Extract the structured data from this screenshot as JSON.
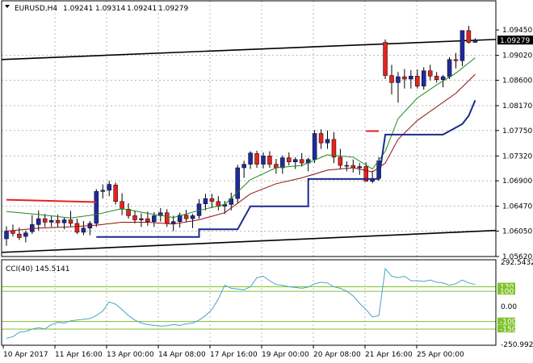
{
  "header": {
    "symbol_tf": "EURUSD,H4",
    "open": "1.09241",
    "high": "1.09314",
    "low": "1.09241",
    "close": "1.09279"
  },
  "colors": {
    "bull_body": "#1f2aa0",
    "bear_body": "#e8221c",
    "ma_fast": "#1f8a1f",
    "ma_slow": "#8b1010",
    "trailing": "#1a2a8a",
    "trend": "#000000",
    "cci": "#4aa3c8",
    "cci_level": "#7fc32b"
  },
  "chart_data": [
    {
      "type": "candlestick",
      "ylim": [
        1.0562,
        1.0967
      ],
      "x_tick_labels": [
        "10 Apr 2017",
        "11 Apr 16:00",
        "13 Apr 00:00",
        "14 Apr 08:00",
        "17 Apr 16:00",
        "19 Apr 00:00",
        "20 Apr 08:00",
        "21 Apr 16:00",
        "25 Apr 00:00"
      ],
      "y_tick_labels": [
        "1.09450",
        "1.09020",
        "1.08600",
        "1.08170",
        "1.07750",
        "1.07320",
        "1.06900",
        "1.06470",
        "1.06050",
        "1.05620"
      ],
      "current_price_label": "1.09279",
      "candles": [
        [
          1.0592,
          1.0613,
          1.058,
          1.0605
        ],
        [
          1.0606,
          1.0616,
          1.0596,
          1.0601
        ],
        [
          1.06,
          1.0611,
          1.059,
          1.0594
        ],
        [
          1.0596,
          1.0606,
          1.0586,
          1.0602
        ],
        [
          1.0604,
          1.0632,
          1.06,
          1.0616
        ],
        [
          1.0616,
          1.064,
          1.0606,
          1.0626
        ],
        [
          1.0626,
          1.0634,
          1.0612,
          1.062
        ],
        [
          1.062,
          1.0631,
          1.0612,
          1.0623
        ],
        [
          1.0623,
          1.0633,
          1.0612,
          1.0619
        ],
        [
          1.0619,
          1.0628,
          1.0608,
          1.0624
        ],
        [
          1.0624,
          1.0639,
          1.0612,
          1.0618
        ],
        [
          1.0618,
          1.0626,
          1.06,
          1.0603
        ],
        [
          1.0603,
          1.0622,
          1.0598,
          1.061
        ],
        [
          1.061,
          1.0622,
          1.0598,
          1.0618
        ],
        [
          1.0618,
          1.0676,
          1.0612,
          1.0672
        ],
        [
          1.0672,
          1.0684,
          1.066,
          1.0674
        ],
        [
          1.0674,
          1.069,
          1.0664,
          1.0684
        ],
        [
          1.0683,
          1.0687,
          1.065,
          1.0655
        ],
        [
          1.0655,
          1.0669,
          1.0632,
          1.0642
        ],
        [
          1.0642,
          1.0652,
          1.0626,
          1.0631
        ],
        [
          1.0631,
          1.064,
          1.0618,
          1.0624
        ],
        [
          1.0624,
          1.0635,
          1.0612,
          1.0626
        ],
        [
          1.0626,
          1.0638,
          1.0614,
          1.0621
        ],
        [
          1.0621,
          1.0637,
          1.0612,
          1.0631
        ],
        [
          1.0631,
          1.0644,
          1.0621,
          1.0636
        ],
        [
          1.0636,
          1.0642,
          1.0612,
          1.0618
        ],
        [
          1.0618,
          1.0631,
          1.0605,
          1.0621
        ],
        [
          1.0621,
          1.0636,
          1.0611,
          1.0632
        ],
        [
          1.0632,
          1.0641,
          1.062,
          1.0626
        ],
        [
          1.0626,
          1.0634,
          1.061,
          1.0631
        ],
        [
          1.0631,
          1.0659,
          1.0626,
          1.0651
        ],
        [
          1.0651,
          1.0668,
          1.064,
          1.066
        ],
        [
          1.066,
          1.0668,
          1.0644,
          1.0655
        ],
        [
          1.0655,
          1.0664,
          1.064,
          1.0647
        ],
        [
          1.0647,
          1.0656,
          1.0634,
          1.065
        ],
        [
          1.065,
          1.067,
          1.064,
          1.066
        ],
        [
          1.066,
          1.0717,
          1.0652,
          1.0712
        ],
        [
          1.0712,
          1.0724,
          1.0695,
          1.0718
        ],
        [
          1.0718,
          1.074,
          1.071,
          1.0737
        ],
        [
          1.0736,
          1.0741,
          1.0712,
          1.0718
        ],
        [
          1.0718,
          1.0738,
          1.0711,
          1.0732
        ],
        [
          1.0732,
          1.074,
          1.0712,
          1.0718
        ],
        [
          1.0718,
          1.0727,
          1.0702,
          1.0712
        ],
        [
          1.0712,
          1.0733,
          1.0702,
          1.0729
        ],
        [
          1.0729,
          1.0738,
          1.0716,
          1.0722
        ],
        [
          1.0722,
          1.073,
          1.071,
          1.0726
        ],
        [
          1.0726,
          1.0737,
          1.0714,
          1.072
        ],
        [
          1.072,
          1.0729,
          1.0706,
          1.0726
        ],
        [
          1.0726,
          1.0776,
          1.072,
          1.077
        ],
        [
          1.077,
          1.0777,
          1.0744,
          1.0754
        ],
        [
          1.0754,
          1.0775,
          1.0744,
          1.076
        ],
        [
          1.076,
          1.0772,
          1.072,
          1.073
        ],
        [
          1.073,
          1.0744,
          1.071,
          1.0716
        ],
        [
          1.0716,
          1.0723,
          1.0706,
          1.0716
        ],
        [
          1.0716,
          1.0726,
          1.0704,
          1.0712
        ],
        [
          1.0712,
          1.072,
          1.07,
          1.0714
        ],
        [
          1.0714,
          1.0721,
          1.0689,
          1.0689
        ],
        [
          1.0689,
          1.0707,
          1.0686,
          1.0694
        ],
        [
          1.0694,
          1.073,
          1.069,
          1.0724
        ],
        [
          1.0924,
          1.0929,
          1.0862,
          1.0868
        ],
        [
          1.0868,
          1.0886,
          1.0836,
          1.0856
        ],
        [
          1.0856,
          1.0874,
          1.0822,
          1.0866
        ],
        [
          1.0866,
          1.0879,
          1.0846,
          1.0862
        ],
        [
          1.0862,
          1.0877,
          1.0846,
          1.0867
        ],
        [
          1.0867,
          1.0878,
          1.0846,
          1.085
        ],
        [
          1.085,
          1.0882,
          1.0844,
          1.0876
        ],
        [
          1.0876,
          1.0886,
          1.086,
          1.0867
        ],
        [
          1.0867,
          1.0874,
          1.0856,
          1.0861
        ],
        [
          1.0861,
          1.0869,
          1.0848,
          1.0866
        ],
        [
          1.0866,
          1.0899,
          1.0862,
          1.0895
        ],
        [
          1.0895,
          1.0906,
          1.088,
          1.0893
        ],
        [
          1.0893,
          1.0944,
          1.0884,
          1.0944
        ],
        [
          1.0944,
          1.0952,
          1.0922,
          1.0924
        ],
        [
          1.0924,
          1.0931,
          1.0924,
          1.0928
        ]
      ],
      "ma_fast": [
        [
          0,
          1.0638
        ],
        [
          5,
          1.0633
        ],
        [
          10,
          1.0627
        ],
        [
          14,
          1.0633
        ],
        [
          18,
          1.0643
        ],
        [
          22,
          1.0635
        ],
        [
          26,
          1.0628
        ],
        [
          30,
          1.064
        ],
        [
          34,
          1.065
        ],
        [
          38,
          1.0692
        ],
        [
          42,
          1.0712
        ],
        [
          46,
          1.0716
        ],
        [
          50,
          1.0734
        ],
        [
          54,
          1.073
        ],
        [
          57,
          1.071
        ],
        [
          59,
          1.074
        ],
        [
          61,
          1.0795
        ],
        [
          64,
          1.083
        ],
        [
          67,
          1.0852
        ],
        [
          70,
          1.0872
        ],
        [
          73,
          1.0898
        ]
      ],
      "ma_slow": [
        [
          0,
          1.0605
        ],
        [
          5,
          1.061
        ],
        [
          10,
          1.0612
        ],
        [
          14,
          1.0615
        ],
        [
          18,
          1.062
        ],
        [
          22,
          1.062
        ],
        [
          26,
          1.0617
        ],
        [
          30,
          1.0624
        ],
        [
          34,
          1.0636
        ],
        [
          38,
          1.0668
        ],
        [
          42,
          1.0685
        ],
        [
          46,
          1.0695
        ],
        [
          50,
          1.0708
        ],
        [
          54,
          1.0712
        ],
        [
          57,
          1.0705
        ],
        [
          59,
          1.072
        ],
        [
          61,
          1.076
        ],
        [
          64,
          1.0792
        ],
        [
          67,
          1.0815
        ],
        [
          70,
          1.0838
        ],
        [
          73,
          1.087
        ]
      ],
      "trailing_line": [
        [
          14,
          1.0595
        ],
        [
          30,
          1.0595
        ],
        [
          30,
          1.0608
        ],
        [
          36,
          1.0608
        ],
        [
          38,
          1.0647
        ],
        [
          47,
          1.0647
        ],
        [
          47,
          1.0693
        ],
        [
          57,
          1.0693
        ],
        [
          58,
          1.0693
        ],
        [
          59,
          1.0768
        ],
        [
          68,
          1.0768
        ],
        [
          71,
          1.0786
        ],
        [
          72,
          1.08
        ],
        [
          73,
          1.0826
        ]
      ],
      "red_line": [
        [
          0,
          1.0658
        ],
        [
          14,
          1.0654
        ]
      ],
      "red_dash": [
        [
          56,
          1.0774
        ],
        [
          58,
          1.0774
        ]
      ],
      "trend_lines": [
        [
          [
            0,
            1.0895
          ],
          [
            79,
            1.0929
          ]
        ],
        [
          [
            0,
            1.0569
          ],
          [
            79,
            1.0606
          ]
        ]
      ]
    },
    {
      "type": "line",
      "title": "CCI(40) 145.5141",
      "ylim": [
        -250.9921,
        292.5432
      ],
      "y_tick_labels": [
        "292.5432",
        "0.00",
        "-250.9921"
      ],
      "levels": [
        {
          "value": 130,
          "label": "130"
        },
        {
          "value": 100,
          "label": "100"
        },
        {
          "value": -100,
          "label": "-100"
        },
        {
          "value": -150,
          "label": "-150"
        }
      ],
      "values": [
        -210,
        -200,
        -170,
        -165,
        -150,
        -140,
        -148,
        -120,
        -105,
        -110,
        -95,
        -90,
        -85,
        -80,
        -60,
        -30,
        30,
        15,
        -20,
        -60,
        -90,
        -110,
        -120,
        -125,
        -130,
        -128,
        -120,
        -125,
        -115,
        -110,
        -90,
        -60,
        -20,
        50,
        140,
        120,
        115,
        110,
        130,
        190,
        200,
        170,
        145,
        140,
        130,
        125,
        120,
        128,
        150,
        160,
        155,
        130,
        120,
        100,
        70,
        20,
        -20,
        -70,
        -60,
        250,
        200,
        190,
        200,
        170,
        170,
        165,
        175,
        160,
        155,
        140,
        150,
        175,
        155,
        145
      ]
    }
  ]
}
